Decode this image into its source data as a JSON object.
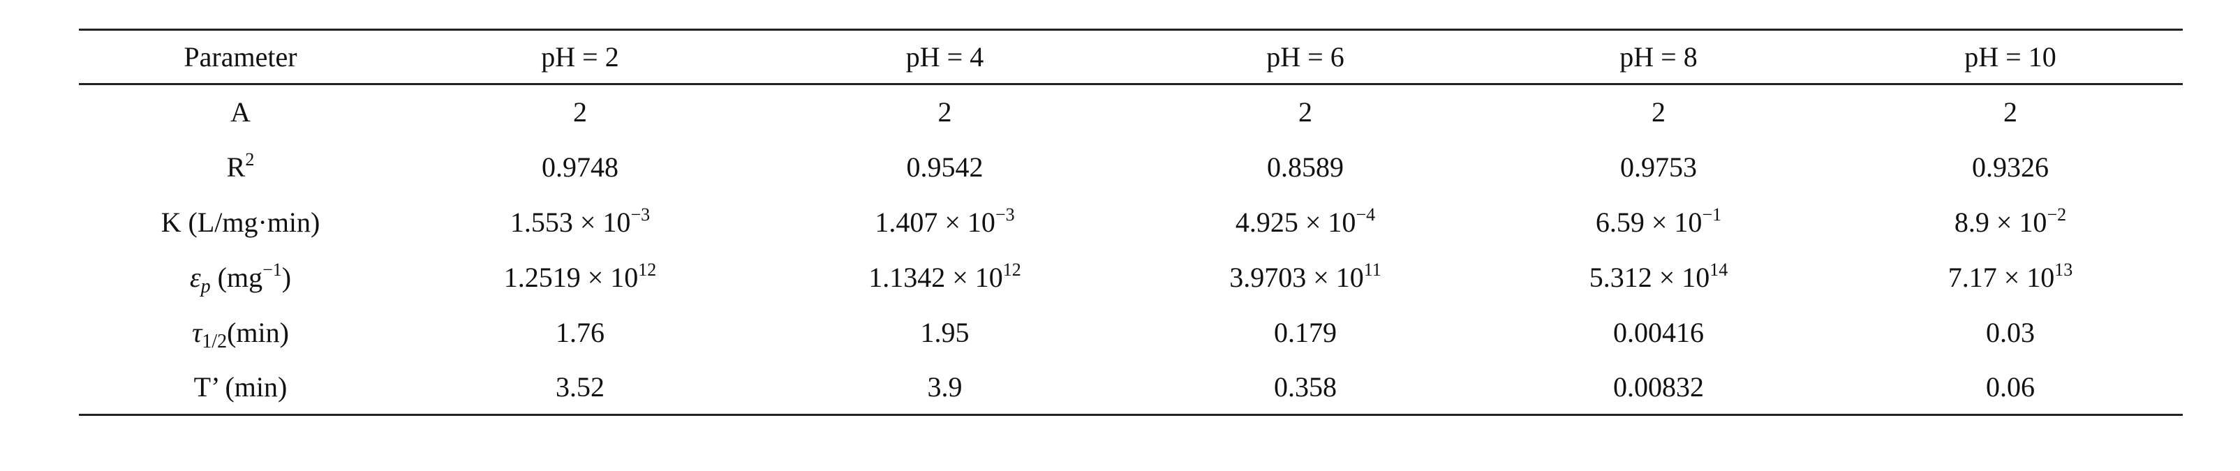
{
  "table": {
    "header": [
      "Parameter",
      "pH = 2",
      "pH = 4",
      "pH = 6",
      "pH = 8",
      "pH = 10"
    ],
    "rows": [
      [
        "A",
        "2",
        "2",
        "2",
        "2",
        "2"
      ],
      [
        [
          "R",
          {
            "sup": "2"
          }
        ],
        "0.9748",
        "0.9542",
        "0.8589",
        "0.9753",
        "0.9326"
      ],
      [
        "K (L/mg·min)",
        [
          "1.553 × 10",
          {
            "sup": "−3"
          }
        ],
        [
          "1.407 × 10",
          {
            "sup": "−3"
          }
        ],
        [
          "4.925 × 10",
          {
            "sup": "−4"
          }
        ],
        [
          "6.59 × 10",
          {
            "sup": "−1"
          }
        ],
        [
          "8.9 × 10",
          {
            "sup": "−2"
          }
        ]
      ],
      [
        [
          {
            "i": "ε"
          },
          {
            "sub": "p"
          },
          " (mg",
          {
            "sup": "−1"
          },
          ")"
        ],
        [
          "1.2519 × 10",
          {
            "sup": "12"
          }
        ],
        [
          "1.1342 × 10",
          {
            "sup": "12"
          }
        ],
        [
          "3.9703 × 10",
          {
            "sup": "11"
          }
        ],
        [
          "5.312 × 10",
          {
            "sup": "14"
          }
        ],
        [
          "7.17 × 10",
          {
            "sup": "13"
          }
        ]
      ],
      [
        [
          {
            "i": "τ"
          },
          {
            "sub": "1/2"
          },
          "(min)"
        ],
        "1.76",
        "1.95",
        "0.179",
        "0.00416",
        "0.03"
      ],
      [
        "T’ (min)",
        "3.52",
        "3.9",
        "0.358",
        "0.00832",
        "0.06"
      ]
    ]
  }
}
